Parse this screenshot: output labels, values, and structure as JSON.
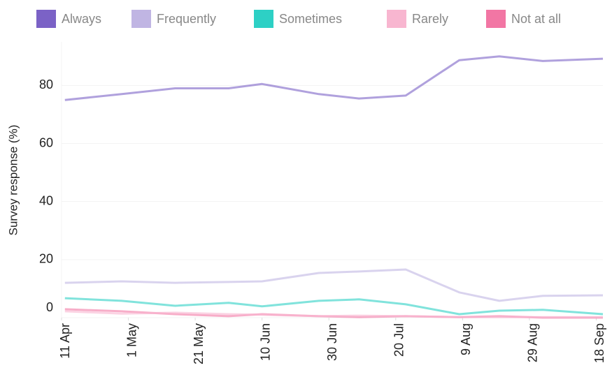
{
  "chart_data": {
    "type": "line",
    "y_label": "Survey response (%)",
    "x": [
      "12 Apr",
      "29 Apr",
      "15 May",
      "31 May",
      "10 Jun",
      "27 Jun",
      "9 Jul",
      "23 Jul",
      "8 Aug",
      "20 Aug",
      "2 Sep",
      "20 Sep"
    ],
    "xlim": [
      "11 Apr",
      "20 Sep"
    ],
    "xticks": [
      "11 Apr",
      "1 May",
      "21 May",
      "10 Jun",
      "30 Jun",
      "20 Jul",
      "9 Aug",
      "29 Aug",
      "18 Sep"
    ],
    "ylim": [
      0,
      95
    ],
    "yticks": [
      0,
      20,
      40,
      60,
      80
    ],
    "grid": true,
    "series": [
      {
        "name": "Always",
        "color": "#7b62c6",
        "values": [
          75,
          77,
          79,
          79,
          80.5,
          77,
          75.5,
          76.5,
          88.7,
          90,
          88.4,
          89.2
        ]
      },
      {
        "name": "Frequently",
        "color": "#c0b5e3",
        "values": [
          12,
          12.5,
          12,
          12.3,
          12.5,
          15.4,
          15.9,
          16.6,
          8.7,
          5.8,
          7.5,
          7.7
        ]
      },
      {
        "name": "Sometimes",
        "color": "#2dd0c5",
        "values": [
          6.7,
          5.8,
          4.1,
          5.1,
          3.9,
          5.8,
          6.3,
          4.6,
          1.2,
          2.4,
          2.7,
          1.2
        ]
      },
      {
        "name": "Rarely",
        "color": "#f8b6d0",
        "values": [
          2.2,
          1.4,
          1.7,
          1.2,
          1,
          0.5,
          0.7,
          0.5,
          0.2,
          0.2,
          0.2,
          0.2
        ]
      },
      {
        "name": "Not at all",
        "color": "#f276a4",
        "values": [
          2.9,
          2.2,
          1.2,
          0.5,
          1.2,
          0.5,
          0.2,
          0.5,
          0.2,
          0.5,
          0,
          0
        ]
      }
    ]
  }
}
